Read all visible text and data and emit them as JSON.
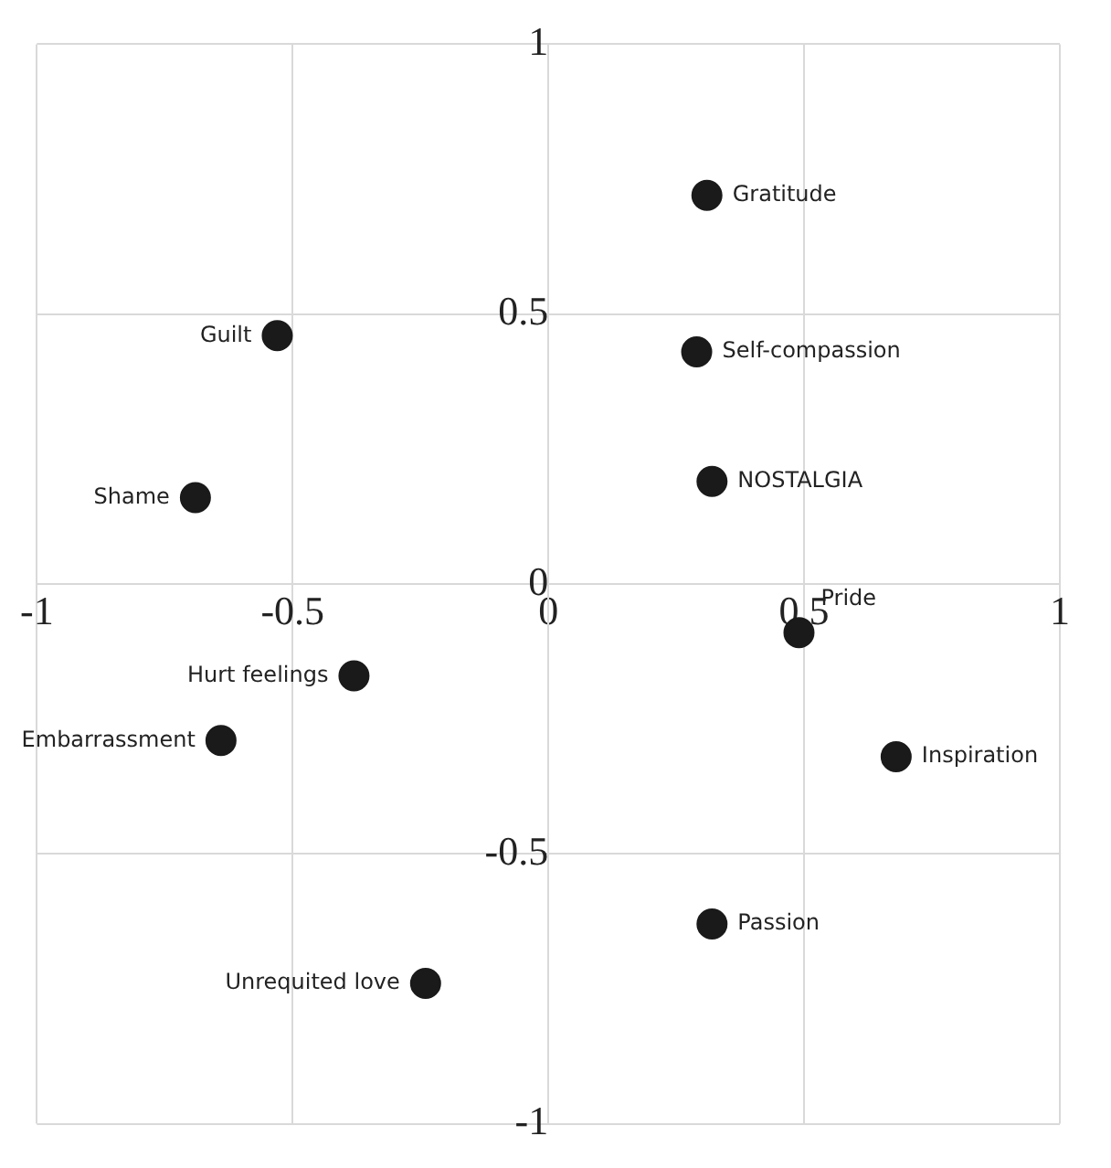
{
  "chart_data": {
    "type": "scatter",
    "series": [
      {
        "color": "#1a1a1a",
        "x": [
          0.31,
          0.29,
          0.32,
          0.49,
          0.68,
          0.32,
          -0.24,
          -0.64,
          -0.38,
          -0.69,
          -0.53
        ],
        "values": [
          0.72,
          0.43,
          0.19,
          -0.09,
          -0.32,
          -0.63,
          -0.74,
          -0.29,
          -0.17,
          0.16,
          0.46
        ]
      }
    ],
    "annotations": [
      {
        "text": "Gratitude",
        "x": 0.31,
        "y": 0.72
      },
      {
        "text": "Self-compassion",
        "x": 0.29,
        "y": 0.43
      },
      {
        "text": "NOSTALGIA",
        "x": 0.32,
        "y": 0.19
      },
      {
        "text": "Pride",
        "x": 0.49,
        "y": -0.09
      },
      {
        "text": "Inspiration",
        "x": 0.68,
        "y": -0.32
      },
      {
        "text": "Passion",
        "x": 0.32,
        "y": -0.63
      },
      {
        "text": "Unrequited love",
        "x": -0.24,
        "y": -0.74
      },
      {
        "text": "Embarrassment",
        "x": -0.64,
        "y": -0.29
      },
      {
        "text": "Hurt feelings",
        "x": -0.38,
        "y": -0.17
      },
      {
        "text": "Shame",
        "x": -0.69,
        "y": 0.16
      },
      {
        "text": "Guilt",
        "x": -0.53,
        "y": 0.46
      }
    ],
    "xlim": [
      -1,
      1
    ],
    "ylim": [
      -1,
      1
    ],
    "xticks": [
      -1,
      -0.5,
      0,
      0.5,
      1
    ],
    "yticks": [
      -1,
      -0.5,
      0,
      0.5,
      1
    ],
    "grid": true,
    "marker": "circle",
    "legend": false
  }
}
